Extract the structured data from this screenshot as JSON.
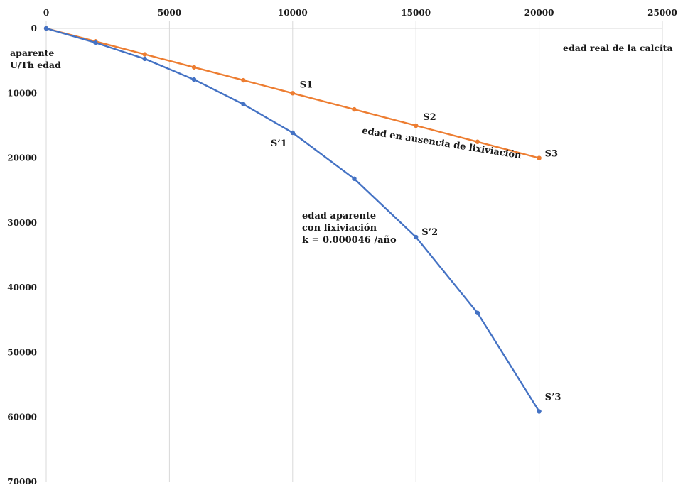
{
  "chart_data": {
    "type": "line",
    "xlim": [
      0,
      25000
    ],
    "ylim": [
      0,
      70000
    ],
    "y_inverted": true,
    "x_axis_position": "top",
    "x_ticks": [
      "0",
      "5000",
      "10000",
      "15000",
      "20000",
      "25000"
    ],
    "y_ticks": [
      "0",
      "10000",
      "20000",
      "30000",
      "40000",
      "50000",
      "60000",
      "70000"
    ],
    "xlabel": "edad real de la calcita",
    "ylabel_lines": [
      "aparente",
      "U/Th edad"
    ],
    "grid": "vertical",
    "series": [
      {
        "color": "#ed7d31",
        "points": [
          [
            0,
            0
          ],
          [
            2000,
            2000
          ],
          [
            4000,
            4000
          ],
          [
            6000,
            6000
          ],
          [
            8000,
            8000
          ],
          [
            10000,
            10000
          ],
          [
            12500,
            12500
          ],
          [
            15000,
            15000
          ],
          [
            17500,
            17500
          ],
          [
            20000,
            20000
          ]
        ]
      },
      {
        "color": "#4472c4",
        "points": [
          [
            0,
            0
          ],
          [
            2000,
            2200
          ],
          [
            4000,
            4700
          ],
          [
            6000,
            7900
          ],
          [
            8000,
            11700
          ],
          [
            10000,
            16100
          ],
          [
            12500,
            23200
          ],
          [
            15000,
            32200
          ],
          [
            17500,
            43900
          ],
          [
            20000,
            59100
          ]
        ]
      }
    ],
    "annotations": [
      {
        "text": "S1",
        "x": 10000,
        "y": 10000
      },
      {
        "text": "S2",
        "x": 15000,
        "y": 15000
      },
      {
        "text": "S3",
        "x": 20000,
        "y": 20000
      },
      {
        "text": "S’1",
        "x": 10000,
        "y": 16100
      },
      {
        "text": "S’2",
        "x": 15000,
        "y": 32200
      },
      {
        "text": "S’3",
        "x": 20000,
        "y": 59100
      },
      {
        "text": "edad en ausencia de lixiviación",
        "x": 12800,
        "y": 16200,
        "angle": 9
      }
    ],
    "apparent_label_lines": [
      "edad aparente",
      "con lixiviación",
      "k = 0.000046 /año"
    ]
  }
}
